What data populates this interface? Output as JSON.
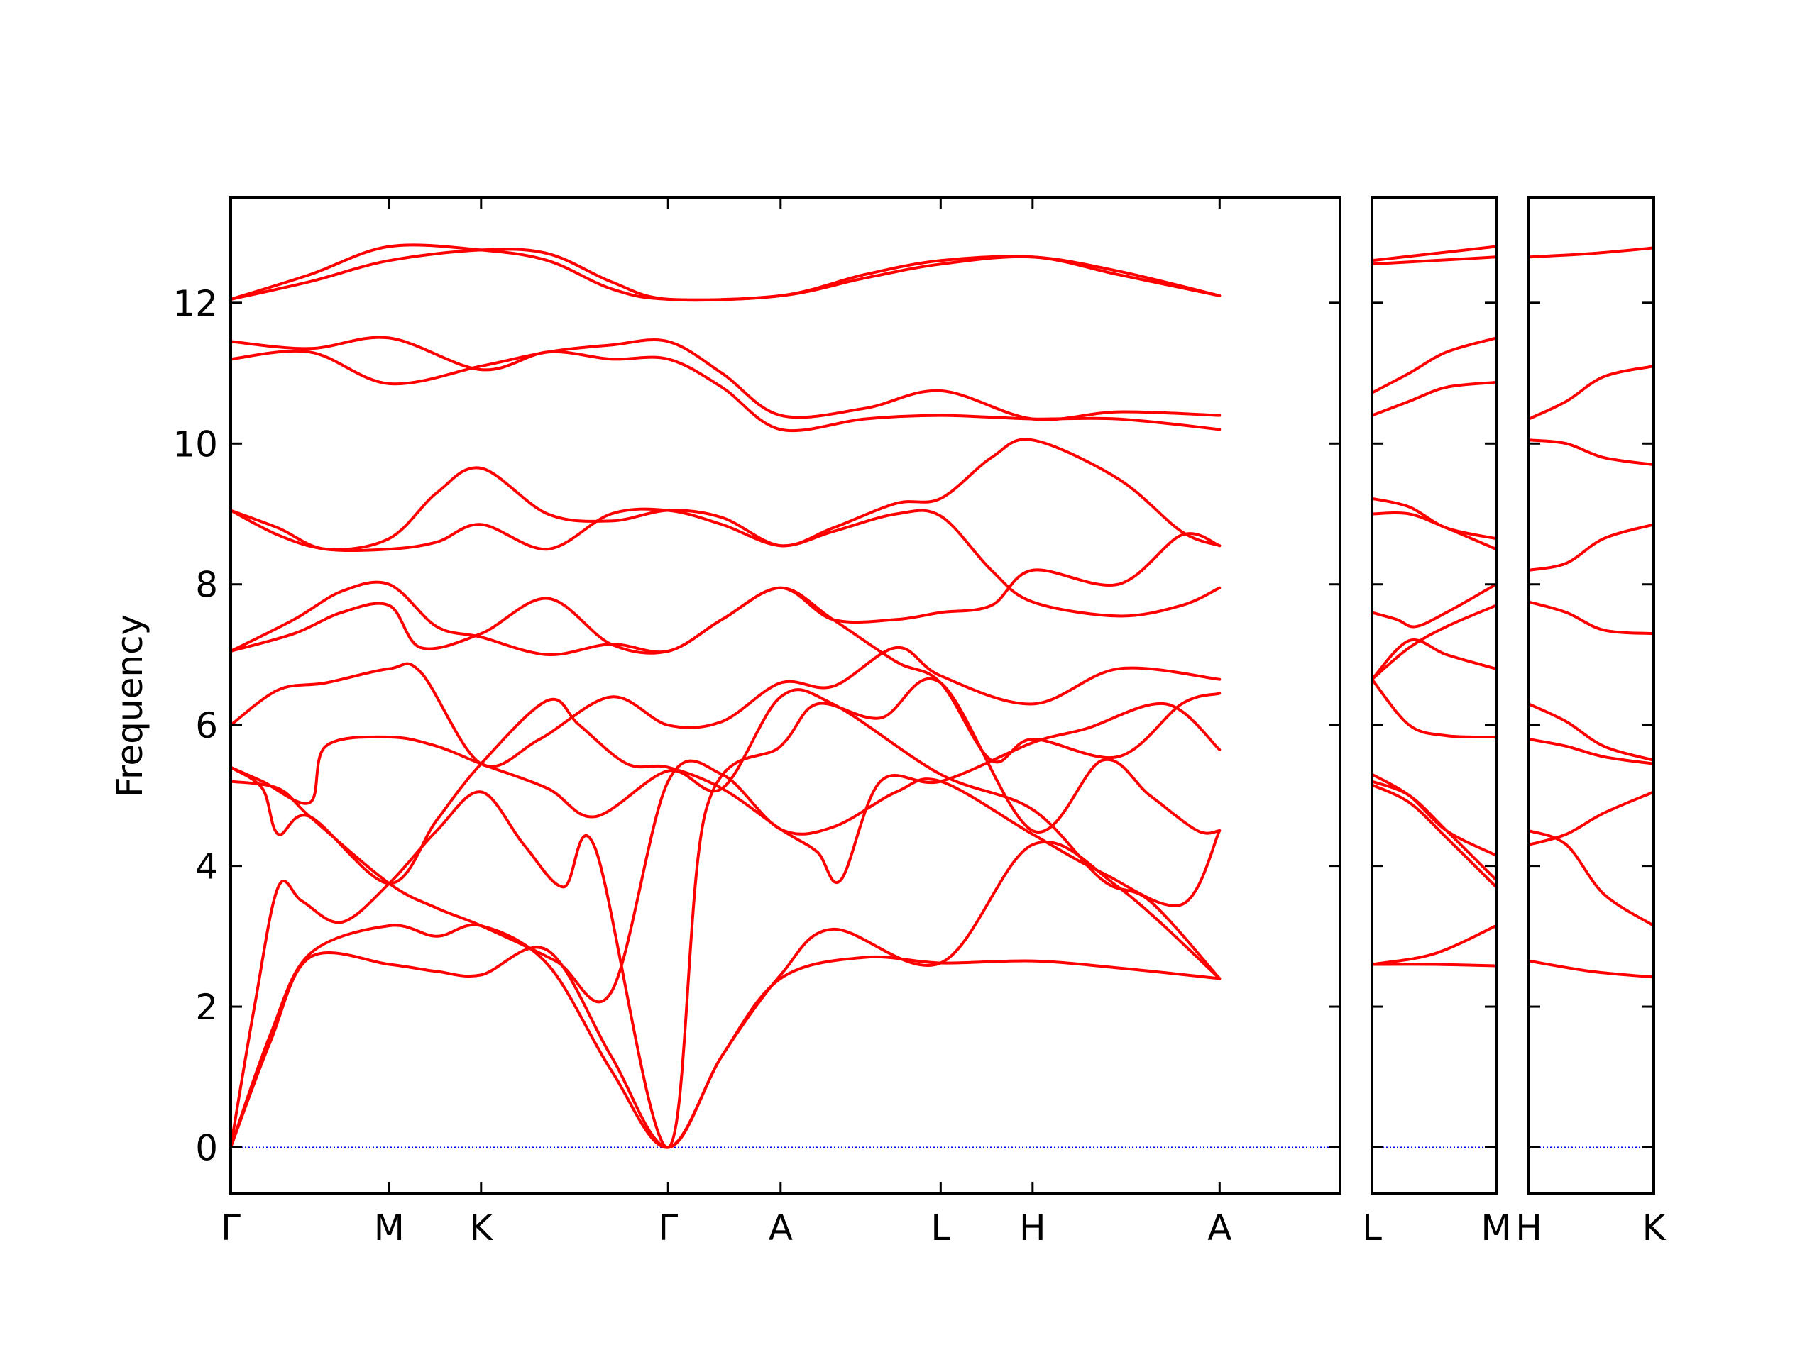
{
  "chart_data": {
    "type": "line",
    "ylabel": "Frequency",
    "ylim": [
      -0.65,
      13.5
    ],
    "yticks": [
      0,
      2,
      4,
      6,
      8,
      10,
      12
    ],
    "colors": {
      "bands": "#ff0000",
      "zero_line": "#0000ff",
      "frame": "#000000"
    },
    "panels": [
      {
        "x_range": [
          0,
          7
        ],
        "xticks": [
          {
            "x": 0,
            "label": "Γ"
          },
          {
            "x": 1,
            "label": "M"
          },
          {
            "x": 1.58,
            "label": "K"
          },
          {
            "x": 2.76,
            "label": "Γ"
          },
          {
            "x": 3.47,
            "label": "A"
          },
          {
            "x": 4.48,
            "label": "L"
          },
          {
            "x": 5.06,
            "label": "H"
          },
          {
            "x": 6.24,
            "label": "A"
          }
        ],
        "bands": [
          {
            "x": [
              0,
              0.25,
              0.5,
              1,
              1.3,
              1.58,
              2,
              2.4,
              2.76,
              3.1,
              3.47,
              4,
              4.48,
              5.06,
              5.6,
              6.24
            ],
            "y": [
              0,
              1.5,
              2.7,
              2.6,
              2.5,
              2.45,
              2.8,
              1.3,
              0,
              1.3,
              2.4,
              2.7,
              2.62,
              2.65,
              2.55,
              2.4
            ]
          },
          {
            "x": [
              0,
              0.25,
              0.5,
              1,
              1.3,
              1.58,
              2,
              2.4,
              2.76,
              3.1,
              3.47,
              3.8,
              4.48,
              5.06,
              5.6,
              6.24
            ],
            "y": [
              0,
              1.6,
              2.75,
              3.15,
              3.0,
              3.15,
              2.6,
              1.1,
              0,
              1.3,
              2.45,
              3.1,
              2.62,
              4.3,
              3.7,
              2.4
            ]
          },
          {
            "x": [
              0,
              0.15,
              0.3,
              0.45,
              0.7,
              1,
              1.3,
              1.58,
              1.85,
              2.1,
              2.3,
              2.76,
              3.0,
              3.47,
              3.7,
              4.1,
              4.48,
              5.06,
              5.5,
              5.8,
              6.1,
              6.24
            ],
            "y": [
              0,
              2.0,
              3.7,
              3.5,
              3.2,
              3.75,
              4.5,
              5.05,
              4.3,
              3.7,
              4.25,
              0,
              4.8,
              5.7,
              6.3,
              6.1,
              6.6,
              4.5,
              5.5,
              5.0,
              4.5,
              4.5
            ]
          },
          {
            "x": [
              0,
              0.3,
              0.5,
              1,
              1.3,
              1.58,
              2.05,
              2.4,
              2.76,
              3.1,
              3.47,
              3.8,
              4.2,
              4.48,
              5.06,
              5.5,
              6.0,
              6.24
            ],
            "y": [
              5.2,
              5.1,
              4.7,
              3.75,
              3.4,
              3.15,
              2.65,
              2.2,
              5.2,
              5.3,
              4.52,
              4.55,
              5.05,
              5.2,
              4.45,
              3.9,
              3.45,
              4.5
            ]
          },
          {
            "x": [
              0,
              0.2,
              0.3,
              0.5,
              1,
              1.3,
              1.58,
              2.0,
              2.2,
              2.5,
              2.76,
              3.1,
              3.47,
              3.7,
              3.85,
              4.1,
              4.48,
              5.06,
              5.4,
              5.9,
              6.24
            ],
            "y": [
              5.4,
              5.1,
              4.45,
              4.7,
              3.75,
              4.65,
              5.45,
              6.35,
              6.0,
              5.45,
              5.4,
              5.1,
              4.52,
              4.2,
              3.8,
              5.2,
              5.2,
              5.75,
              5.95,
              6.3,
              5.65
            ]
          },
          {
            "x": [
              0,
              0.2,
              0.5,
              0.6,
              1,
              1.3,
              1.58,
              2.0,
              2.3,
              2.76,
              3.1,
              3.47,
              3.8,
              4.48,
              5.06,
              5.5,
              5.8,
              6.24
            ],
            "y": [
              5.4,
              5.2,
              4.9,
              5.7,
              5.83,
              5.7,
              5.45,
              5.1,
              4.7,
              5.35,
              5.1,
              6.4,
              6.3,
              5.3,
              4.8,
              3.8,
              3.5,
              2.4
            ]
          },
          {
            "x": [
              0,
              0.3,
              0.6,
              1,
              1.2,
              1.58,
              1.95,
              2.4,
              2.76,
              3.1,
              3.47,
              3.8,
              4.2,
              4.48,
              5.06,
              5.6,
              6.24
            ],
            "y": [
              6.0,
              6.5,
              6.6,
              6.8,
              6.75,
              5.45,
              5.8,
              6.4,
              6.0,
              6.05,
              6.6,
              6.55,
              7.1,
              6.7,
              6.3,
              6.8,
              6.65
            ]
          },
          {
            "x": [
              0,
              0.4,
              0.7,
              1,
              1.2,
              1.58,
              2.0,
              2.4,
              2.76,
              3.1,
              3.47,
              3.8,
              4.2,
              4.48,
              4.8,
              5.06,
              5.6,
              6.0,
              6.24
            ],
            "y": [
              7.05,
              7.3,
              7.6,
              7.7,
              7.1,
              7.3,
              7.8,
              7.15,
              7.05,
              7.5,
              7.95,
              7.5,
              6.9,
              6.6,
              5.5,
              5.8,
              5.55,
              6.3,
              6.45
            ]
          },
          {
            "x": [
              0,
              0.4,
              0.7,
              1,
              1.3,
              1.58,
              2.0,
              2.4,
              2.76,
              3.1,
              3.47,
              3.8,
              4.2,
              4.48,
              4.8,
              5.06,
              5.6,
              6.0,
              6.24
            ],
            "y": [
              7.05,
              7.5,
              7.9,
              8.0,
              7.4,
              7.25,
              7.0,
              7.15,
              7.05,
              7.5,
              7.95,
              7.5,
              7.5,
              7.6,
              7.7,
              8.2,
              8.0,
              8.7,
              8.55
            ]
          },
          {
            "x": [
              0,
              0.3,
              0.6,
              1,
              1.3,
              1.58,
              2.0,
              2.4,
              2.76,
              3.1,
              3.47,
              3.8,
              4.2,
              4.48,
              4.8,
              5.06,
              5.6,
              6.0,
              6.24
            ],
            "y": [
              9.05,
              8.8,
              8.5,
              8.65,
              9.3,
              9.65,
              9.0,
              8.9,
              9.05,
              8.95,
              8.55,
              8.8,
              9.15,
              9.22,
              9.8,
              10.05,
              9.5,
              8.75,
              8.55
            ]
          },
          {
            "x": [
              0,
              0.3,
              0.6,
              1,
              1.3,
              1.58,
              2.0,
              2.4,
              2.76,
              3.1,
              3.47,
              3.8,
              4.2,
              4.48,
              4.8,
              5.06,
              5.6,
              6.0,
              6.24
            ],
            "y": [
              9.05,
              8.7,
              8.5,
              8.5,
              8.6,
              8.85,
              8.5,
              9.0,
              9.05,
              8.85,
              8.55,
              8.75,
              9.0,
              8.97,
              8.2,
              7.75,
              7.55,
              7.7,
              7.95
            ]
          },
          {
            "x": [
              0,
              0.5,
              1,
              1.58,
              2.0,
              2.4,
              2.76,
              3.1,
              3.47,
              4.0,
              4.48,
              5.06,
              5.6,
              6.24
            ],
            "y": [
              11.2,
              11.3,
              10.85,
              11.1,
              11.3,
              11.4,
              11.45,
              11.0,
              10.4,
              10.5,
              10.75,
              10.35,
              10.45,
              10.4
            ]
          },
          {
            "x": [
              0,
              0.5,
              1,
              1.58,
              2.0,
              2.4,
              2.76,
              3.1,
              3.47,
              4.0,
              4.48,
              5.06,
              5.6,
              6.24
            ],
            "y": [
              11.45,
              11.35,
              11.5,
              11.05,
              11.3,
              11.2,
              11.2,
              10.8,
              10.2,
              10.35,
              10.4,
              10.35,
              10.35,
              10.2
            ]
          },
          {
            "x": [
              0,
              0.5,
              1,
              1.58,
              2.0,
              2.4,
              2.76,
              3.47,
              4.0,
              4.48,
              5.06,
              5.6,
              6.24
            ],
            "y": [
              12.05,
              12.4,
              12.8,
              12.75,
              12.6,
              12.2,
              12.05,
              12.1,
              12.4,
              12.6,
              12.65,
              12.45,
              12.1
            ]
          },
          {
            "x": [
              0,
              0.5,
              1,
              1.58,
              2.0,
              2.4,
              2.76,
              3.47,
              4.0,
              4.48,
              5.06,
              5.6,
              6.24
            ],
            "y": [
              12.05,
              12.3,
              12.6,
              12.75,
              12.7,
              12.3,
              12.05,
              12.1,
              12.35,
              12.55,
              12.65,
              12.4,
              12.1
            ]
          }
        ]
      },
      {
        "x_range": [
          0,
          1
        ],
        "xticks": [
          {
            "x": 0,
            "label": "L"
          },
          {
            "x": 1,
            "label": "M"
          }
        ],
        "bands": [
          {
            "x": [
              0,
              0.5,
              1
            ],
            "y": [
              2.6,
              2.6,
              2.58
            ]
          },
          {
            "x": [
              0,
              0.5,
              1
            ],
            "y": [
              2.6,
              2.75,
              3.15
            ]
          },
          {
            "x": [
              0,
              0.3,
              0.6,
              1
            ],
            "y": [
              5.15,
              4.9,
              4.4,
              3.7
            ]
          },
          {
            "x": [
              0,
              0.3,
              0.6,
              1
            ],
            "y": [
              5.2,
              5.0,
              4.5,
              3.8
            ]
          },
          {
            "x": [
              0,
              0.3,
              0.6,
              1
            ],
            "y": [
              5.3,
              5.0,
              4.5,
              4.15
            ]
          },
          {
            "x": [
              0,
              0.3,
              0.6,
              1
            ],
            "y": [
              6.65,
              6.0,
              5.85,
              5.83
            ]
          },
          {
            "x": [
              0,
              0.3,
              0.6,
              1
            ],
            "y": [
              6.65,
              7.2,
              7.0,
              6.8
            ]
          },
          {
            "x": [
              0,
              0.3,
              0.6,
              1
            ],
            "y": [
              6.65,
              7.1,
              7.4,
              7.7
            ]
          },
          {
            "x": [
              0,
              0.2,
              0.35,
              0.6,
              1
            ],
            "y": [
              7.6,
              7.5,
              7.4,
              7.6,
              8.0
            ]
          },
          {
            "x": [
              0,
              0.3,
              0.6,
              1
            ],
            "y": [
              9.0,
              9.0,
              8.8,
              8.5
            ]
          },
          {
            "x": [
              0,
              0.3,
              0.6,
              1
            ],
            "y": [
              9.22,
              9.1,
              8.8,
              8.65
            ]
          },
          {
            "x": [
              0,
              0.3,
              0.6,
              1
            ],
            "y": [
              10.4,
              10.6,
              10.8,
              10.87
            ]
          },
          {
            "x": [
              0,
              0.3,
              0.6,
              1
            ],
            "y": [
              10.72,
              11.0,
              11.3,
              11.5
            ]
          },
          {
            "x": [
              0,
              0.5,
              1
            ],
            "y": [
              12.55,
              12.6,
              12.65
            ]
          },
          {
            "x": [
              0,
              0.5,
              1
            ],
            "y": [
              12.6,
              12.7,
              12.8
            ]
          }
        ]
      },
      {
        "x_range": [
          0,
          1
        ],
        "xticks": [
          {
            "x": 0,
            "label": "H"
          },
          {
            "x": 1,
            "label": "K"
          }
        ],
        "bands": [
          {
            "x": [
              0,
              0.5,
              1
            ],
            "y": [
              2.65,
              2.5,
              2.42
            ]
          },
          {
            "x": [
              0,
              0.3,
              0.6,
              1
            ],
            "y": [
              4.5,
              4.3,
              3.6,
              3.15
            ]
          },
          {
            "x": [
              0,
              0.3,
              0.6,
              1
            ],
            "y": [
              4.3,
              4.45,
              4.75,
              5.05
            ]
          },
          {
            "x": [
              0,
              0.3,
              0.6,
              1
            ],
            "y": [
              5.8,
              5.7,
              5.55,
              5.45
            ]
          },
          {
            "x": [
              0,
              0.3,
              0.6,
              1
            ],
            "y": [
              6.3,
              6.05,
              5.7,
              5.5
            ]
          },
          {
            "x": [
              0,
              0.3,
              0.6,
              1
            ],
            "y": [
              7.75,
              7.6,
              7.35,
              7.3
            ]
          },
          {
            "x": [
              0,
              0.3,
              0.6,
              1
            ],
            "y": [
              8.2,
              8.3,
              8.65,
              8.85
            ]
          },
          {
            "x": [
              0,
              0.3,
              0.6,
              1
            ],
            "y": [
              10.05,
              10.0,
              9.8,
              9.7
            ]
          },
          {
            "x": [
              0,
              0.3,
              0.6,
              1
            ],
            "y": [
              10.35,
              10.6,
              10.95,
              11.1
            ]
          },
          {
            "x": [
              0,
              0.5,
              1
            ],
            "y": [
              12.65,
              12.7,
              12.78
            ]
          }
        ]
      }
    ]
  }
}
